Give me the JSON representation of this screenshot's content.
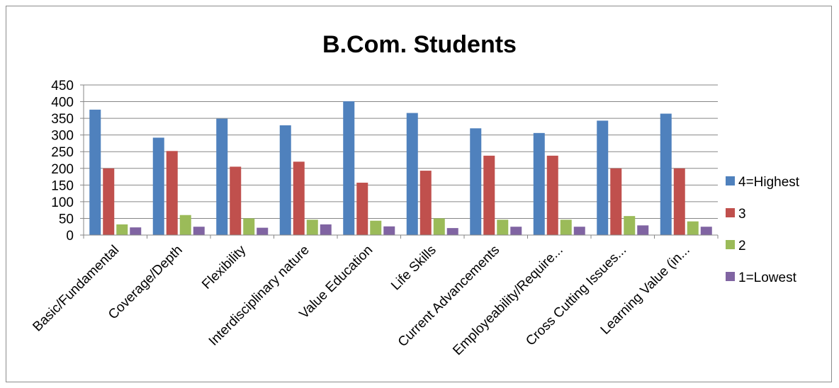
{
  "chart_data": {
    "type": "bar",
    "title": "B.Com. Students",
    "xlabel": "",
    "ylabel": "",
    "ylim": [
      0,
      450
    ],
    "yticks": [
      0,
      50,
      100,
      150,
      200,
      250,
      300,
      350,
      400,
      450
    ],
    "grid": true,
    "legend_position": "right",
    "categories": [
      "Basic/Fundamental",
      "Coverage/Depth",
      "Flexibility",
      "Interdisciplinary nature",
      "Value Education",
      "Life Skills",
      "Current Advancements",
      "Employeability/Require...",
      "Cross Cutting Issues...",
      "Learning Value (in..."
    ],
    "series": [
      {
        "name": "4=Highest",
        "color": "#4f81bd",
        "values": [
          376,
          292,
          349,
          329,
          401,
          366,
          320,
          306,
          343,
          364
        ]
      },
      {
        "name": "3",
        "color": "#c0504d",
        "values": [
          200,
          252,
          205,
          220,
          157,
          193,
          238,
          238,
          200,
          200
        ]
      },
      {
        "name": "2",
        "color": "#9bbb59",
        "values": [
          32,
          60,
          50,
          46,
          43,
          50,
          46,
          46,
          57,
          41
        ]
      },
      {
        "name": "1=Lowest",
        "color": "#8064a2",
        "values": [
          23,
          25,
          22,
          32,
          26,
          21,
          25,
          25,
          29,
          25
        ]
      }
    ]
  }
}
